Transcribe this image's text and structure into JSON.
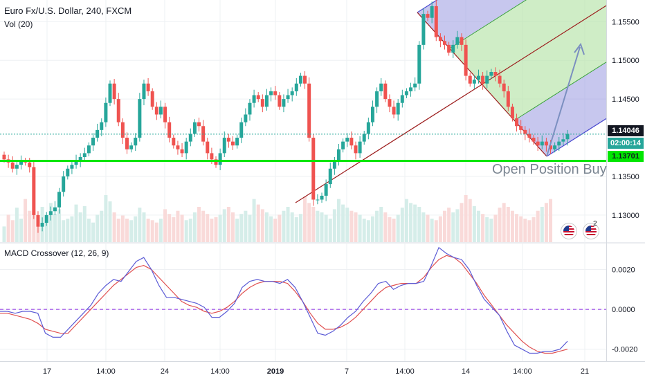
{
  "header": {
    "title": "Euro Fx/U.S. Dollar, 240, FXCM",
    "volume_label": "Vol (20)",
    "macd_label": "MACD Crossover (12, 26, 9)"
  },
  "annotation": {
    "text": "Open Position Buy"
  },
  "flags": {
    "count_label": "2"
  },
  "price_axis": {
    "ticks": [
      "1.15500",
      "1.15000",
      "1.14500",
      "1.13500",
      "1.13000"
    ],
    "current_price": "1.14046",
    "countdown": "02:00:14",
    "support_price": "1.13701"
  },
  "macd_axis": {
    "ticks": [
      "0.0020",
      "0.0000",
      "-0.0020"
    ]
  },
  "time_axis": {
    "labels": [
      "17",
      "14:00",
      "24",
      "14:00",
      "2019",
      "7",
      "14:00",
      "14",
      "14:00",
      "21"
    ]
  },
  "colors": {
    "bull": "#26a69a",
    "bear": "#ef5350",
    "support": "#00e600",
    "macd": "#5b5bd6",
    "signal": "#e05050",
    "pitchfork_median": "#9c1c1c",
    "pitchfork_fill_blue": "#9999e0",
    "pitchfork_fill_green": "#b5e3a8",
    "arrow": "#7b8fc0"
  },
  "chart_data": [
    {
      "type": "candlestick",
      "title": "Euro Fx/U.S. Dollar, 240, FXCM",
      "x": [
        "17",
        "14:00",
        "24",
        "14:00",
        "2019",
        "7",
        "14:00",
        "14",
        "14:00",
        "21"
      ],
      "ylim": [
        1.1265,
        1.1578
      ],
      "yticks": [
        1.155,
        1.15,
        1.145,
        1.135,
        1.13
      ],
      "current_price": 1.14046,
      "support_level": 1.13701,
      "closes": [
        1.1372,
        1.1368,
        1.136,
        1.1365,
        1.137,
        1.1368,
        1.1362,
        1.13,
        1.1285,
        1.129,
        1.13,
        1.1305,
        1.131,
        1.133,
        1.135,
        1.136,
        1.1365,
        1.137,
        1.1375,
        1.138,
        1.139,
        1.14,
        1.141,
        1.142,
        1.1445,
        1.147,
        1.145,
        1.142,
        1.14,
        1.1385,
        1.139,
        1.14,
        1.145,
        1.147,
        1.146,
        1.144,
        1.143,
        1.144,
        1.142,
        1.14,
        1.139,
        1.1385,
        1.138,
        1.1395,
        1.1405,
        1.142,
        1.1415,
        1.1395,
        1.138,
        1.1372,
        1.1365,
        1.138,
        1.14,
        1.1395,
        1.139,
        1.14,
        1.142,
        1.143,
        1.1445,
        1.1455,
        1.145,
        1.144,
        1.1455,
        1.146,
        1.1455,
        1.144,
        1.145,
        1.1455,
        1.146,
        1.147,
        1.148,
        1.147,
        1.14,
        1.132,
        1.132,
        1.1325,
        1.134,
        1.136,
        1.137,
        1.1385,
        1.1395,
        1.14,
        1.139,
        1.138,
        1.1395,
        1.1405,
        1.142,
        1.144,
        1.146,
        1.147,
        1.145,
        1.144,
        1.143,
        1.1445,
        1.1455,
        1.146,
        1.1465,
        1.147,
        1.152,
        1.156,
        1.1555,
        1.157,
        1.153,
        1.1525,
        1.152,
        1.151,
        1.152,
        1.153,
        1.152,
        1.148,
        1.147,
        1.1475,
        1.148,
        1.147,
        1.148,
        1.1485,
        1.148,
        1.147,
        1.146,
        1.144,
        1.1425,
        1.1415,
        1.141,
        1.1405,
        1.14,
        1.1395,
        1.139,
        1.1395,
        1.139,
        1.1385,
        1.139,
        1.1395,
        1.1398,
        1.1405
      ]
    },
    {
      "type": "bar",
      "title": "Vol (20)",
      "values": [
        20,
        35,
        28,
        44,
        30,
        55,
        40,
        38,
        25,
        45,
        32,
        50,
        36,
        42,
        28,
        30,
        33,
        48,
        38,
        46,
        30,
        25,
        35,
        40,
        60,
        52,
        38,
        30,
        34,
        30,
        28,
        33,
        44,
        38,
        30,
        28,
        25,
        30,
        42,
        36,
        32,
        40,
        35,
        28,
        30,
        38,
        45,
        40,
        36,
        30,
        32,
        35,
        42,
        45,
        38,
        30,
        36,
        40,
        35,
        55,
        48,
        42,
        38,
        33,
        30,
        35,
        40,
        45,
        38,
        32,
        36,
        58,
        50,
        45,
        40,
        38,
        35,
        30,
        42,
        55,
        48,
        44,
        40,
        38,
        35,
        30,
        28,
        33,
        40,
        45,
        38,
        32,
        30,
        35,
        44,
        55,
        50,
        48,
        45,
        38,
        35,
        30,
        28,
        33,
        40,
        44,
        38,
        42,
        50,
        60,
        55,
        46,
        40,
        36,
        32,
        30,
        35,
        44,
        50,
        45,
        40,
        36,
        33,
        30,
        28,
        32,
        40,
        45,
        50,
        55
      ]
    },
    {
      "type": "line",
      "title": "MACD Crossover (12, 26, 9)",
      "ylim": [
        -0.0026,
        0.0033
      ],
      "yticks": [
        0.002,
        0.0,
        -0.002
      ],
      "zero_line": 0.0,
      "series": [
        {
          "values": [
            -0.0001,
            -0.0001,
            -0.0002,
            -0.0001,
            -0.0001,
            -0.0002,
            -0.0012,
            -0.0014,
            -0.0014,
            -0.001,
            -0.0006,
            -0.0002,
            0.0002,
            0.0008,
            0.0012,
            0.0015,
            0.0014,
            0.0019,
            0.0024,
            0.0026,
            0.002,
            0.0012,
            0.0006,
            0.0006,
            0.0005,
            0.0004,
            0.0003,
            0.0001,
            -0.0004,
            -0.0004,
            -0.0001,
            0.0003,
            0.0011,
            0.0014,
            0.0015,
            0.0014,
            0.0014,
            0.0013,
            0.0015,
            0.0011,
            0.0004,
            -0.0004,
            -0.0012,
            -0.0013,
            -0.0011,
            -0.0008,
            -0.0004,
            -0.0001,
            0.0004,
            0.0008,
            0.0013,
            0.0014,
            0.001,
            0.0012,
            0.0013,
            0.0013,
            0.0014,
            0.0022,
            0.0031,
            0.0028,
            0.0026,
            0.0025,
            0.002,
            0.0012,
            0.0005,
            0.0001,
            -0.0003,
            -0.0011,
            -0.0018,
            -0.002,
            -0.0022,
            -0.0022,
            -0.0021,
            -0.0021,
            -0.002,
            -0.0016
          ]
        },
        {
          "values": [
            -0.0002,
            -0.0002,
            -0.0003,
            -0.0004,
            -0.0005,
            -0.0007,
            -0.001,
            -0.0011,
            -0.0012,
            -0.0012,
            -0.0008,
            -0.0004,
            0.0,
            0.0004,
            0.0008,
            0.0012,
            0.0015,
            0.0018,
            0.0021,
            0.0022,
            0.002,
            0.0016,
            0.0012,
            0.0008,
            0.0004,
            0.0002,
            0.0001,
            -0.0001,
            -0.0002,
            -0.0001,
            0.0001,
            0.0004,
            0.0008,
            0.0011,
            0.0013,
            0.0014,
            0.0014,
            0.0014,
            0.0013,
            0.0009,
            0.0004,
            -0.0002,
            -0.0007,
            -0.001,
            -0.001,
            -0.0009,
            -0.0007,
            -0.0004,
            0.0,
            0.0004,
            0.0008,
            0.0011,
            0.0012,
            0.0013,
            0.0013,
            0.0013,
            0.0016,
            0.0021,
            0.0025,
            0.0027,
            0.0026,
            0.0023,
            0.0018,
            0.0013,
            0.0007,
            0.0002,
            -0.0003,
            -0.0008,
            -0.0012,
            -0.0016,
            -0.0019,
            -0.0021,
            -0.0022,
            -0.0022,
            -0.0021,
            -0.002
          ]
        }
      ]
    }
  ]
}
